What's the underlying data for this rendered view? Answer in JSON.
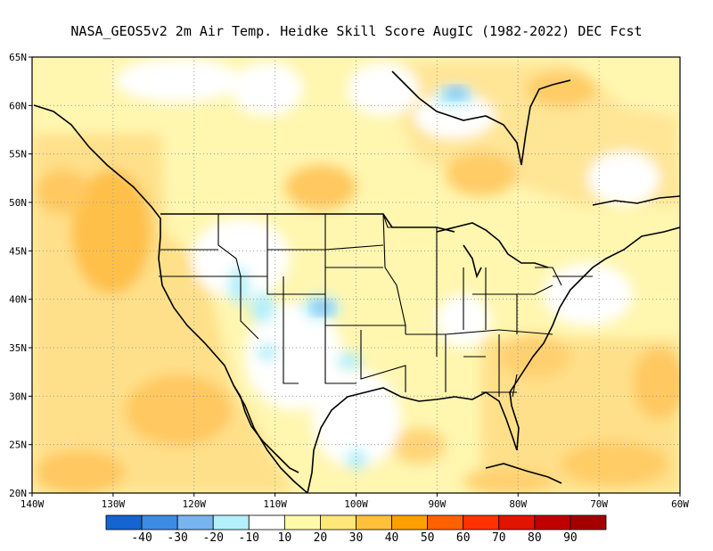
{
  "title": "NASA_GEOS5v2  2m Air Temp. Heidke Skill Score AugIC (1982-2022) DEC Fcst",
  "map": {
    "lon_range": [
      -140,
      -60
    ],
    "lat_range": [
      20,
      65
    ],
    "lat_labels": [
      "65N",
      "60N",
      "55N",
      "50N",
      "45N",
      "40N",
      "35N",
      "30N",
      "25N",
      "20N"
    ],
    "lon_labels": [
      "140W",
      "130W",
      "120W",
      "110W",
      "100W",
      "90W",
      "80W",
      "70W",
      "60W"
    ],
    "grid": true
  },
  "colorbar": {
    "levels": [
      "-40",
      "-30",
      "-20",
      "-10",
      "10",
      "20",
      "30",
      "40",
      "50",
      "60",
      "70",
      "80",
      "90"
    ],
    "colors": [
      "#1464d2",
      "#3c8ce6",
      "#78b4f0",
      "#b4f0fa",
      "#ffffff",
      "#fffaaa",
      "#ffe878",
      "#ffc03c",
      "#ffa000",
      "#ff6000",
      "#ff3200",
      "#e11400",
      "#c00000",
      "#a50000"
    ]
  }
}
